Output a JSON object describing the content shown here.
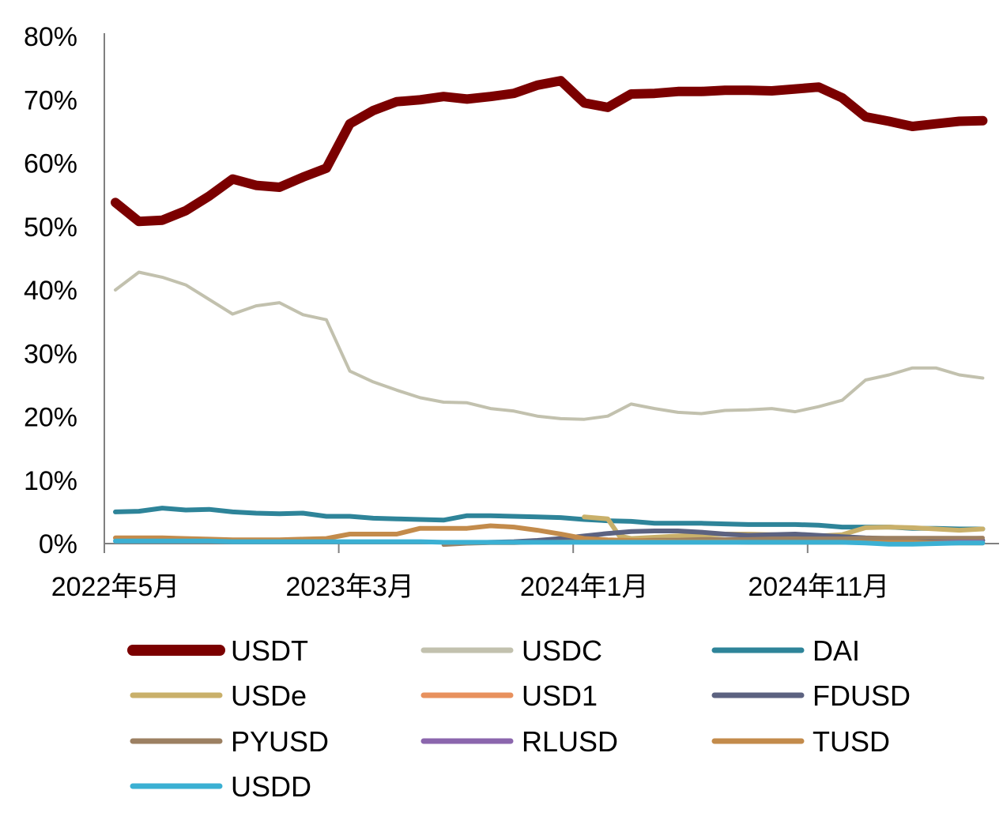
{
  "chart_data": {
    "type": "line",
    "title": "",
    "xlabel": "",
    "ylabel": "",
    "ylim": [
      0,
      80
    ],
    "y_ticks": [
      0,
      10,
      20,
      30,
      40,
      50,
      60,
      70,
      80
    ],
    "y_tick_labels": [
      "0%",
      "10%",
      "20%",
      "30%",
      "40%",
      "50%",
      "60%",
      "70%",
      "80%"
    ],
    "x_range": [
      0,
      38
    ],
    "x_ticks": [
      0,
      10,
      20,
      30
    ],
    "x_tick_labels": [
      "2022年5月",
      "2023年3月",
      "2024年1月",
      "2024年11月"
    ],
    "grid": false,
    "legend_position": "bottom",
    "series": [
      {
        "name": "USDT",
        "color": "#7B0000",
        "width": 12,
        "points": [
          [
            0,
            53.8
          ],
          [
            1,
            50.8
          ],
          [
            2,
            51
          ],
          [
            3,
            52.5
          ],
          [
            4,
            54.8
          ],
          [
            5,
            57.5
          ],
          [
            6,
            56.5
          ],
          [
            7,
            56.2
          ],
          [
            8,
            57.8
          ],
          [
            9,
            59.2
          ],
          [
            10,
            66.2
          ],
          [
            11,
            68.3
          ],
          [
            12,
            69.7
          ],
          [
            13,
            70
          ],
          [
            14,
            70.5
          ],
          [
            15,
            70.1
          ],
          [
            16,
            70.5
          ],
          [
            17,
            71
          ],
          [
            18,
            72.3
          ],
          [
            19,
            73
          ],
          [
            20,
            69.5
          ],
          [
            21,
            68.8
          ],
          [
            22,
            70.9
          ],
          [
            23,
            71
          ],
          [
            24,
            71.3
          ],
          [
            25,
            71.3
          ],
          [
            26,
            71.5
          ],
          [
            27,
            71.5
          ],
          [
            28,
            71.4
          ],
          [
            29,
            71.7
          ],
          [
            30,
            72
          ],
          [
            31,
            70.3
          ],
          [
            32,
            67.3
          ],
          [
            33,
            66.6
          ],
          [
            34,
            65.8
          ],
          [
            35,
            66.2
          ],
          [
            36,
            66.6
          ],
          [
            37,
            66.7
          ]
        ]
      },
      {
        "name": "USDC",
        "color": "#C2C1AE",
        "width": 4,
        "points": [
          [
            0,
            40
          ],
          [
            1,
            42.8
          ],
          [
            2,
            42
          ],
          [
            3,
            40.8
          ],
          [
            4,
            38.5
          ],
          [
            5,
            36.2
          ],
          [
            6,
            37.5
          ],
          [
            7,
            38
          ],
          [
            8,
            36.1
          ],
          [
            9,
            35.3
          ],
          [
            10,
            27.2
          ],
          [
            11,
            25.5
          ],
          [
            12,
            24.2
          ],
          [
            13,
            23
          ],
          [
            14,
            22.3
          ],
          [
            15,
            22.2
          ],
          [
            16,
            21.3
          ],
          [
            17,
            20.9
          ],
          [
            18,
            20.1
          ],
          [
            19,
            19.7
          ],
          [
            20,
            19.6
          ],
          [
            21,
            20.1
          ],
          [
            22,
            22
          ],
          [
            23,
            21.3
          ],
          [
            24,
            20.7
          ],
          [
            25,
            20.5
          ],
          [
            26,
            21
          ],
          [
            27,
            21.1
          ],
          [
            28,
            21.3
          ],
          [
            29,
            20.8
          ],
          [
            30,
            21.6
          ],
          [
            31,
            22.6
          ],
          [
            32,
            25.8
          ],
          [
            33,
            26.6
          ],
          [
            34,
            27.7
          ],
          [
            35,
            27.7
          ],
          [
            36,
            26.6
          ],
          [
            37,
            26.1
          ]
        ]
      },
      {
        "name": "DAI",
        "color": "#2E8499",
        "width": 6,
        "points": [
          [
            0,
            5
          ],
          [
            1,
            5.1
          ],
          [
            2,
            5.6
          ],
          [
            3,
            5.3
          ],
          [
            4,
            5.4
          ],
          [
            5,
            5
          ],
          [
            6,
            4.8
          ],
          [
            7,
            4.7
          ],
          [
            8,
            4.8
          ],
          [
            9,
            4.3
          ],
          [
            10,
            4.3
          ],
          [
            11,
            4
          ],
          [
            12,
            3.9
          ],
          [
            13,
            3.8
          ],
          [
            14,
            3.7
          ],
          [
            15,
            4.4
          ],
          [
            16,
            4.4
          ],
          [
            17,
            4.3
          ],
          [
            18,
            4.2
          ],
          [
            19,
            4.1
          ],
          [
            20,
            3.8
          ],
          [
            21,
            3.6
          ],
          [
            22,
            3.5
          ],
          [
            23,
            3.2
          ],
          [
            24,
            3.2
          ],
          [
            25,
            3.2
          ],
          [
            26,
            3.1
          ],
          [
            27,
            3
          ],
          [
            28,
            3
          ],
          [
            29,
            3
          ],
          [
            30,
            2.9
          ],
          [
            31,
            2.6
          ],
          [
            32,
            2.6
          ],
          [
            33,
            2.6
          ],
          [
            34,
            2.4
          ],
          [
            35,
            2.4
          ],
          [
            36,
            2.3
          ],
          [
            37,
            2.3
          ]
        ]
      },
      {
        "name": "USDe",
        "color": "#C9B06A",
        "width": 6,
        "points": [
          [
            20,
            4.2
          ],
          [
            21,
            3.9
          ],
          [
            21.5,
            1.2
          ],
          [
            22,
            0.8
          ],
          [
            23,
            1
          ],
          [
            24,
            1.2
          ],
          [
            25,
            1.3
          ],
          [
            26,
            1.5
          ],
          [
            27,
            1.5
          ],
          [
            28,
            1.4
          ],
          [
            29,
            1.3
          ],
          [
            30,
            1.2
          ],
          [
            31,
            1.4
          ],
          [
            32,
            2.5
          ],
          [
            33,
            2.6
          ],
          [
            34,
            2.5
          ],
          [
            35,
            2.3
          ],
          [
            36,
            2.1
          ],
          [
            37,
            2.3
          ]
        ]
      },
      {
        "name": "USD1",
        "color": "#E8915E",
        "width": 5,
        "points": [
          [
            33,
            0.3
          ],
          [
            34,
            0.4
          ],
          [
            35,
            0.6
          ],
          [
            36,
            0.8
          ],
          [
            37,
            0.9
          ]
        ]
      },
      {
        "name": "FDUSD",
        "color": "#5C6280",
        "width": 6,
        "points": [
          [
            15,
            0.1
          ],
          [
            16,
            0.2
          ],
          [
            17,
            0.3
          ],
          [
            18,
            0.5
          ],
          [
            19,
            0.8
          ],
          [
            20,
            1.2
          ],
          [
            21,
            1.6
          ],
          [
            22,
            1.9
          ],
          [
            23,
            2
          ],
          [
            24,
            2
          ],
          [
            25,
            1.8
          ],
          [
            26,
            1.5
          ],
          [
            27,
            1.3
          ],
          [
            28,
            1.4
          ],
          [
            29,
            1.5
          ],
          [
            30,
            1.3
          ],
          [
            31,
            1.1
          ],
          [
            32,
            0.9
          ],
          [
            33,
            0.8
          ],
          [
            34,
            0.7
          ],
          [
            35,
            0.6
          ],
          [
            36,
            0.5
          ],
          [
            37,
            0.5
          ]
        ]
      },
      {
        "name": "PYUSD",
        "color": "#9C8062",
        "width": 5,
        "points": [
          [
            14,
            -0.2
          ],
          [
            15,
            0
          ],
          [
            16,
            0.1
          ],
          [
            17,
            0.1
          ],
          [
            18,
            0.2
          ],
          [
            19,
            0.3
          ],
          [
            20,
            0.4
          ],
          [
            21,
            0.5
          ],
          [
            22,
            0.5
          ],
          [
            23,
            0.6
          ],
          [
            24,
            0.6
          ],
          [
            25,
            0.7
          ],
          [
            26,
            0.7
          ],
          [
            27,
            0.7
          ],
          [
            28,
            0.8
          ],
          [
            29,
            0.8
          ],
          [
            30,
            0.8
          ],
          [
            31,
            0.8
          ],
          [
            32,
            0.9
          ],
          [
            33,
            0.9
          ],
          [
            34,
            0.9
          ],
          [
            35,
            0.9
          ],
          [
            36,
            0.9
          ],
          [
            37,
            0.9
          ]
        ]
      },
      {
        "name": "RLUSD",
        "color": "#8B66AD",
        "width": 5,
        "points": [
          [
            33,
            0.1
          ],
          [
            34,
            0.1
          ],
          [
            35,
            0.2
          ],
          [
            36,
            0.3
          ],
          [
            37,
            0.3
          ]
        ]
      },
      {
        "name": "TUSD",
        "color": "#C38B4B",
        "width": 6,
        "points": [
          [
            0,
            0.9
          ],
          [
            1,
            0.9
          ],
          [
            2,
            0.9
          ],
          [
            3,
            0.8
          ],
          [
            4,
            0.7
          ],
          [
            5,
            0.6
          ],
          [
            6,
            0.6
          ],
          [
            7,
            0.6
          ],
          [
            8,
            0.7
          ],
          [
            9,
            0.8
          ],
          [
            10,
            1.5
          ],
          [
            11,
            1.5
          ],
          [
            12,
            1.5
          ],
          [
            13,
            2.4
          ],
          [
            14,
            2.4
          ],
          [
            15,
            2.4
          ],
          [
            16,
            2.8
          ],
          [
            17,
            2.6
          ],
          [
            18,
            2.1
          ],
          [
            19,
            1.5
          ],
          [
            20,
            0.8
          ],
          [
            21,
            0.6
          ],
          [
            22,
            0.5
          ],
          [
            23,
            0.4
          ],
          [
            24,
            0.3
          ],
          [
            25,
            0.3
          ],
          [
            26,
            0.3
          ],
          [
            27,
            0.2
          ],
          [
            28,
            0.2
          ],
          [
            29,
            0.2
          ],
          [
            30,
            0.2
          ],
          [
            31,
            0.2
          ],
          [
            32,
            0.2
          ],
          [
            33,
            0.2
          ],
          [
            34,
            0.2
          ],
          [
            35,
            0.1
          ],
          [
            36,
            0.1
          ],
          [
            37,
            0.1
          ]
        ]
      },
      {
        "name": "USDD",
        "color": "#3BB0D3",
        "width": 6,
        "points": [
          [
            0,
            0.4
          ],
          [
            1,
            0.4
          ],
          [
            2,
            0.4
          ],
          [
            3,
            0.4
          ],
          [
            4,
            0.4
          ],
          [
            5,
            0.3
          ],
          [
            6,
            0.3
          ],
          [
            7,
            0.3
          ],
          [
            8,
            0.3
          ],
          [
            9,
            0.3
          ],
          [
            10,
            0.3
          ],
          [
            11,
            0.3
          ],
          [
            12,
            0.3
          ],
          [
            13,
            0.3
          ],
          [
            14,
            0.2
          ],
          [
            15,
            0.2
          ],
          [
            16,
            0.2
          ],
          [
            17,
            0.2
          ],
          [
            18,
            0.2
          ],
          [
            19,
            0.2
          ],
          [
            20,
            0.2
          ],
          [
            21,
            0.2
          ],
          [
            22,
            0.2
          ],
          [
            23,
            0.2
          ],
          [
            24,
            0.2
          ],
          [
            25,
            0.2
          ],
          [
            26,
            0.2
          ],
          [
            27,
            0.2
          ],
          [
            28,
            0.2
          ],
          [
            29,
            0.2
          ],
          [
            30,
            0.2
          ],
          [
            31,
            0.2
          ],
          [
            32,
            0.1
          ],
          [
            33,
            -0.1
          ],
          [
            34,
            -0.1
          ],
          [
            35,
            0
          ],
          [
            36,
            0.1
          ],
          [
            37,
            0.1
          ]
        ]
      }
    ]
  }
}
